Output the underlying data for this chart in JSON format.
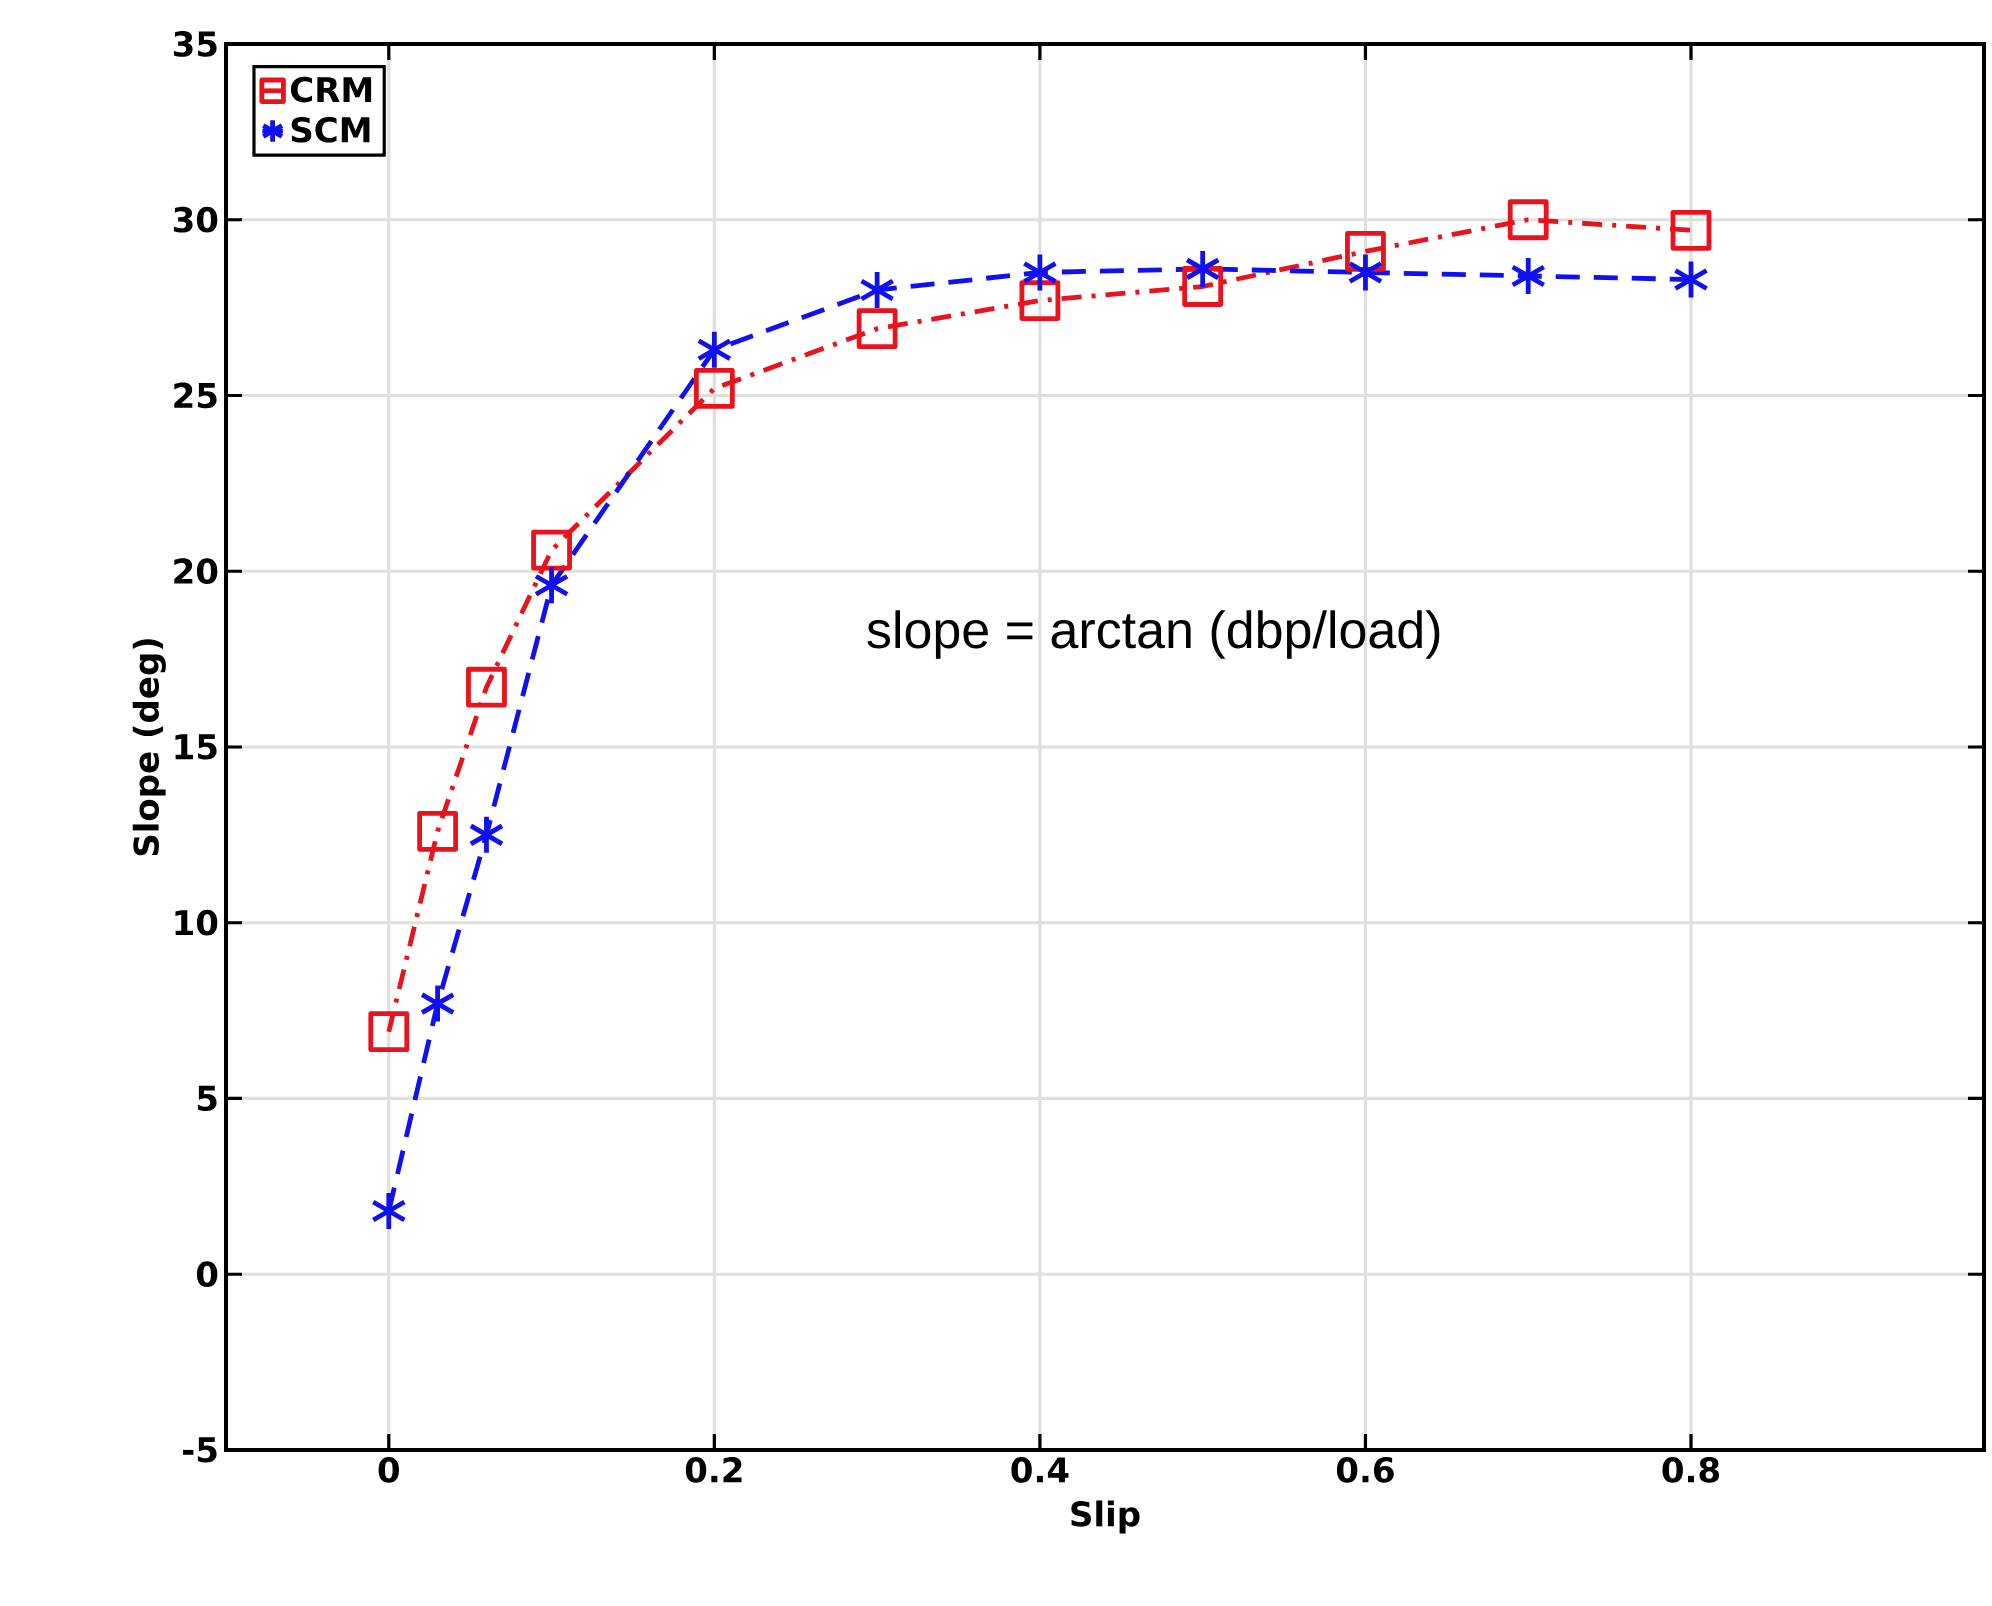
{
  "chart_data": {
    "type": "line",
    "xlabel": "Slip",
    "ylabel": "Slope (deg)",
    "xlim": [
      -0.1,
      0.98
    ],
    "ylim": [
      -5,
      35
    ],
    "xticks": [
      0,
      0.2,
      0.4,
      0.6,
      0.8
    ],
    "yticks": [
      -5,
      0,
      5,
      10,
      15,
      20,
      25,
      30,
      35
    ],
    "grid": true,
    "legend": "top left",
    "x": [
      0,
      0.03,
      0.06,
      0.1,
      0.2,
      0.3,
      0.4,
      0.5,
      0.6,
      0.7,
      0.8
    ],
    "series": [
      {
        "name": "CRM",
        "color": "#e8131c",
        "marker": "square",
        "line_style": "dashdot",
        "values": [
          6.9,
          12.6,
          16.7,
          20.6,
          25.2,
          26.9,
          27.7,
          28.1,
          29.1,
          30.0,
          29.7
        ]
      },
      {
        "name": "SCM",
        "color": "#1010f0",
        "marker": "cross",
        "line_style": "dashed",
        "values": [
          1.8,
          7.7,
          12.5,
          19.6,
          26.3,
          28.0,
          28.5,
          28.6,
          28.5,
          28.4,
          28.3
        ]
      }
    ],
    "annotations": [
      "slope = arctan (dbp/load)"
    ]
  }
}
